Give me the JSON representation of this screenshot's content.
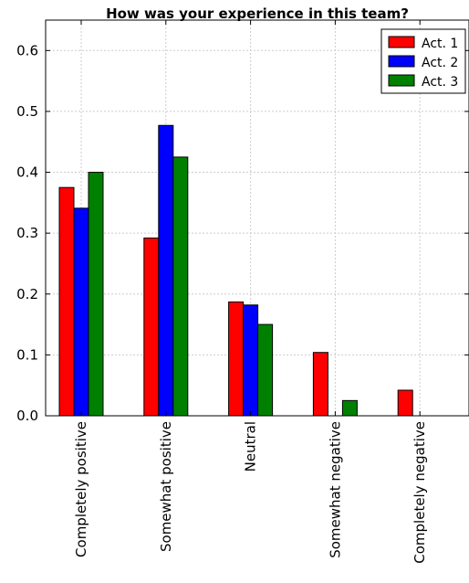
{
  "chart_data": {
    "type": "bar",
    "title": "How was your experience in this team?",
    "xlabel": "",
    "ylabel": "",
    "categories": [
      "Completely positive",
      "Somewhat positive",
      "Neutral",
      "Somewhat negative",
      "Completely negative"
    ],
    "series": [
      {
        "name": "Act. 1",
        "color": "#ff0000",
        "values": [
          0.375,
          0.292,
          0.187,
          0.104,
          0.042
        ]
      },
      {
        "name": "Act. 2",
        "color": "#0000ff",
        "values": [
          0.341,
          0.477,
          0.182,
          0.0,
          0.0
        ]
      },
      {
        "name": "Act. 3",
        "color": "#008000",
        "values": [
          0.4,
          0.425,
          0.15,
          0.025,
          0.0
        ]
      }
    ],
    "ylim": [
      0,
      0.65
    ],
    "yticks": [
      "0.0",
      "0.1",
      "0.2",
      "0.3",
      "0.4",
      "0.5",
      "0.6"
    ],
    "grid": true,
    "legend_position": "top-right"
  }
}
